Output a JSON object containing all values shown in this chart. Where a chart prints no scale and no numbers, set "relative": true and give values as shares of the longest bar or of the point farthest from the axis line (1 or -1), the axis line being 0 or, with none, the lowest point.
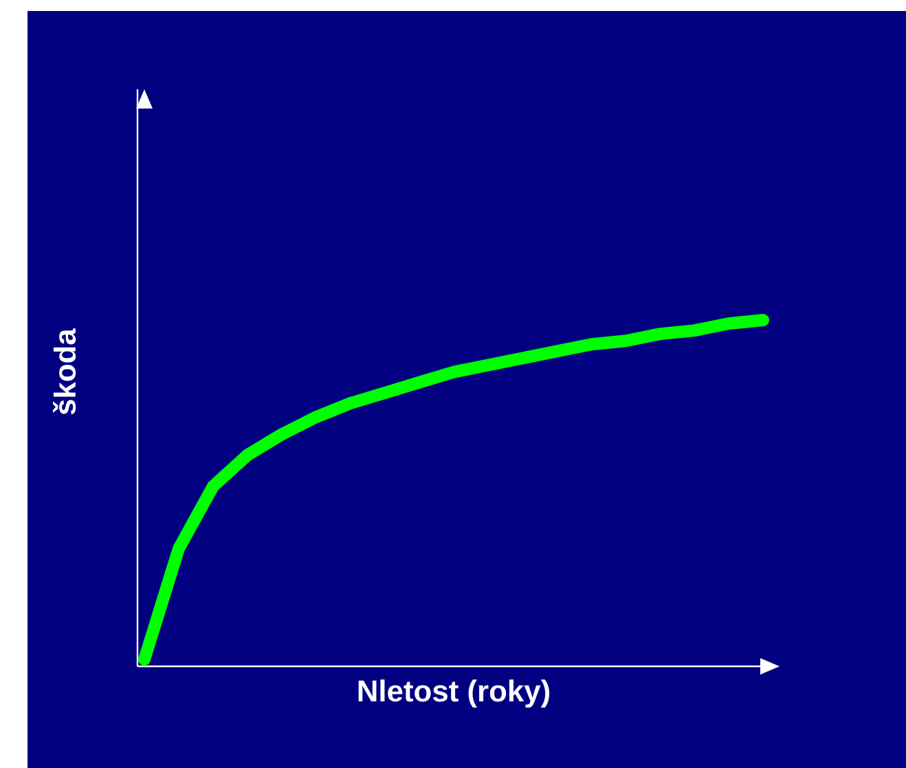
{
  "chart_data": {
    "type": "line",
    "relative": true,
    "xlabel": "Nletost (roky)",
    "ylabel": "škoda",
    "categories": [
      null,
      null,
      null,
      null,
      null,
      null,
      null,
      null,
      null,
      null,
      null,
      null,
      null,
      null,
      null,
      null,
      null,
      null,
      null
    ],
    "values": [
      0.02,
      0.34,
      0.52,
      0.61,
      0.67,
      0.72,
      0.76,
      0.79,
      0.82,
      0.85,
      0.87,
      0.89,
      0.91,
      0.93,
      0.94,
      0.96,
      0.97,
      0.99,
      1.0
    ],
    "color": "#00ff00"
  }
}
